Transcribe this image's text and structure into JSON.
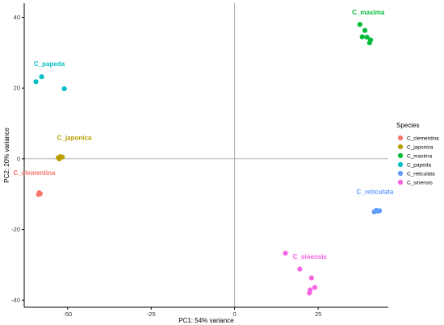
{
  "chart_data": {
    "type": "scatter",
    "title": "",
    "xlabel": "PC1: 54% variance",
    "ylabel": "PC2: 20% variance",
    "xlim": [
      -63,
      46
    ],
    "ylim": [
      -42,
      44
    ],
    "xticks": [
      -50,
      -25,
      0,
      25
    ],
    "yticks": [
      -40,
      -20,
      0,
      20,
      40
    ],
    "reference_lines": {
      "x": 0,
      "y": 0
    },
    "grid": false,
    "legend": {
      "title": "Species",
      "position": "right"
    },
    "series": [
      {
        "name": "C_clementina",
        "color": "#F8766D",
        "label": "C_clementina",
        "points": [
          [
            -58.5,
            -9.6
          ],
          [
            -58.2,
            -9.9
          ],
          [
            -58.7,
            -10.1
          ]
        ]
      },
      {
        "name": "C_japonica",
        "color": "#B79F00",
        "label": "C_japonica",
        "points": [
          [
            -52.8,
            0.3
          ],
          [
            -52.2,
            0.6
          ],
          [
            -51.6,
            0.5
          ],
          [
            -52.5,
            0.0
          ]
        ]
      },
      {
        "name": "C_maxima",
        "color": "#00BA38",
        "label": "C_maxima",
        "points": [
          [
            37.5,
            38.0
          ],
          [
            39.0,
            36.3
          ],
          [
            38.2,
            34.5
          ],
          [
            39.6,
            34.4
          ],
          [
            40.7,
            33.6
          ],
          [
            40.4,
            32.8
          ]
        ]
      },
      {
        "name": "C_papeda",
        "color": "#00BFC4",
        "label": "C_papeda",
        "points": [
          [
            -59.5,
            21.8
          ],
          [
            -57.8,
            23.2
          ],
          [
            -51.0,
            19.8
          ]
        ]
      },
      {
        "name": "C_reticulata",
        "color": "#619CFF",
        "label": "C_reticulata",
        "points": [
          [
            41.8,
            -15.0
          ],
          [
            42.4,
            -14.6
          ],
          [
            42.9,
            -14.8
          ],
          [
            43.4,
            -14.7
          ]
        ]
      },
      {
        "name": "C_sinensis",
        "color": "#F564E3",
        "label": "C_sinensis",
        "points": [
          [
            15.2,
            -26.7
          ],
          [
            19.5,
            -31.2
          ],
          [
            23.0,
            -33.7
          ],
          [
            24.0,
            -36.4
          ],
          [
            22.6,
            -37.1
          ],
          [
            22.4,
            -38.0
          ]
        ]
      }
    ],
    "cluster_labels": [
      {
        "series": "C_clementina",
        "text": "C_clementina",
        "x": -60.0,
        "y": -4.6
      },
      {
        "series": "C_japonica",
        "text": "C_japonica",
        "x": -48.0,
        "y": 5.3
      },
      {
        "series": "C_maxima",
        "text": "C_maxima",
        "x": 40.0,
        "y": 40.8
      },
      {
        "series": "C_papeda",
        "text": "C_papeda",
        "x": -55.5,
        "y": 26.2
      },
      {
        "series": "C_reticulata",
        "text": "C_reticulata",
        "x": 42.0,
        "y": -10.0
      },
      {
        "series": "C_sinensis",
        "text": "C_sinensis",
        "x": 22.5,
        "y": -28.3
      }
    ]
  }
}
